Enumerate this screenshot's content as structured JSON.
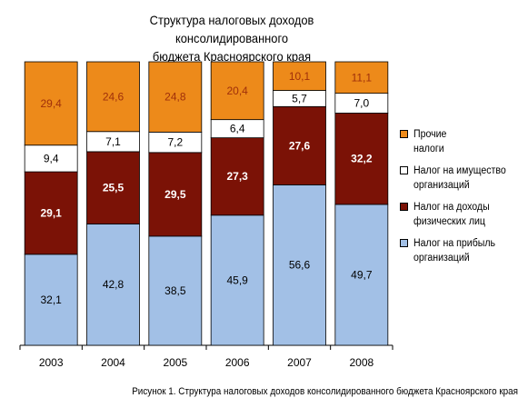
{
  "title_line1": "Структура налоговых доходов консолидированного",
  "title_line2": "бюджета Красноярского края",
  "caption": "Рисунок 1. Структура налоговых доходов консолидированного бюджета Красноярского края",
  "chart_data": {
    "type": "bar",
    "stacked": true,
    "categories": [
      "2003",
      "2004",
      "2005",
      "2006",
      "2007",
      "2008"
    ],
    "ylim": [
      0,
      100
    ],
    "series": [
      {
        "name": "Налог на прибыль\nорганизаций",
        "color": "#a2c0e6",
        "label_color": "#000000",
        "values": [
          32.1,
          42.8,
          38.5,
          45.9,
          56.6,
          49.7
        ],
        "labels": [
          "32,1",
          "42,8",
          "38,5",
          "45,9",
          "56,6",
          "49,7"
        ]
      },
      {
        "name": "Налог на доходы\nфизических лиц",
        "color": "#7b1206",
        "label_color": "#ffffff",
        "values": [
          29.1,
          25.5,
          29.5,
          27.3,
          27.6,
          32.2
        ],
        "labels": [
          "29,1",
          "25,5",
          "29,5",
          "27,3",
          "27,6",
          "32,2"
        ]
      },
      {
        "name": "Налог на имущество\nорганизаций",
        "color": "#ffffff",
        "label_color": "#000000",
        "values": [
          9.4,
          7.1,
          7.2,
          6.4,
          5.7,
          7.0
        ],
        "labels": [
          "9,4",
          "7,1",
          "7,2",
          "6,4",
          "5,7",
          "7,0"
        ]
      },
      {
        "name": "Прочие\nналоги",
        "color": "#ed8a1a",
        "label_color": "#a0300a",
        "values": [
          29.4,
          24.6,
          24.8,
          20.4,
          10.1,
          11.1
        ],
        "labels": [
          "29,4",
          "24,6",
          "24,8",
          "20,4",
          "10,1",
          "11,1"
        ]
      }
    ],
    "legend_order": [
      3,
      2,
      1,
      0
    ]
  }
}
